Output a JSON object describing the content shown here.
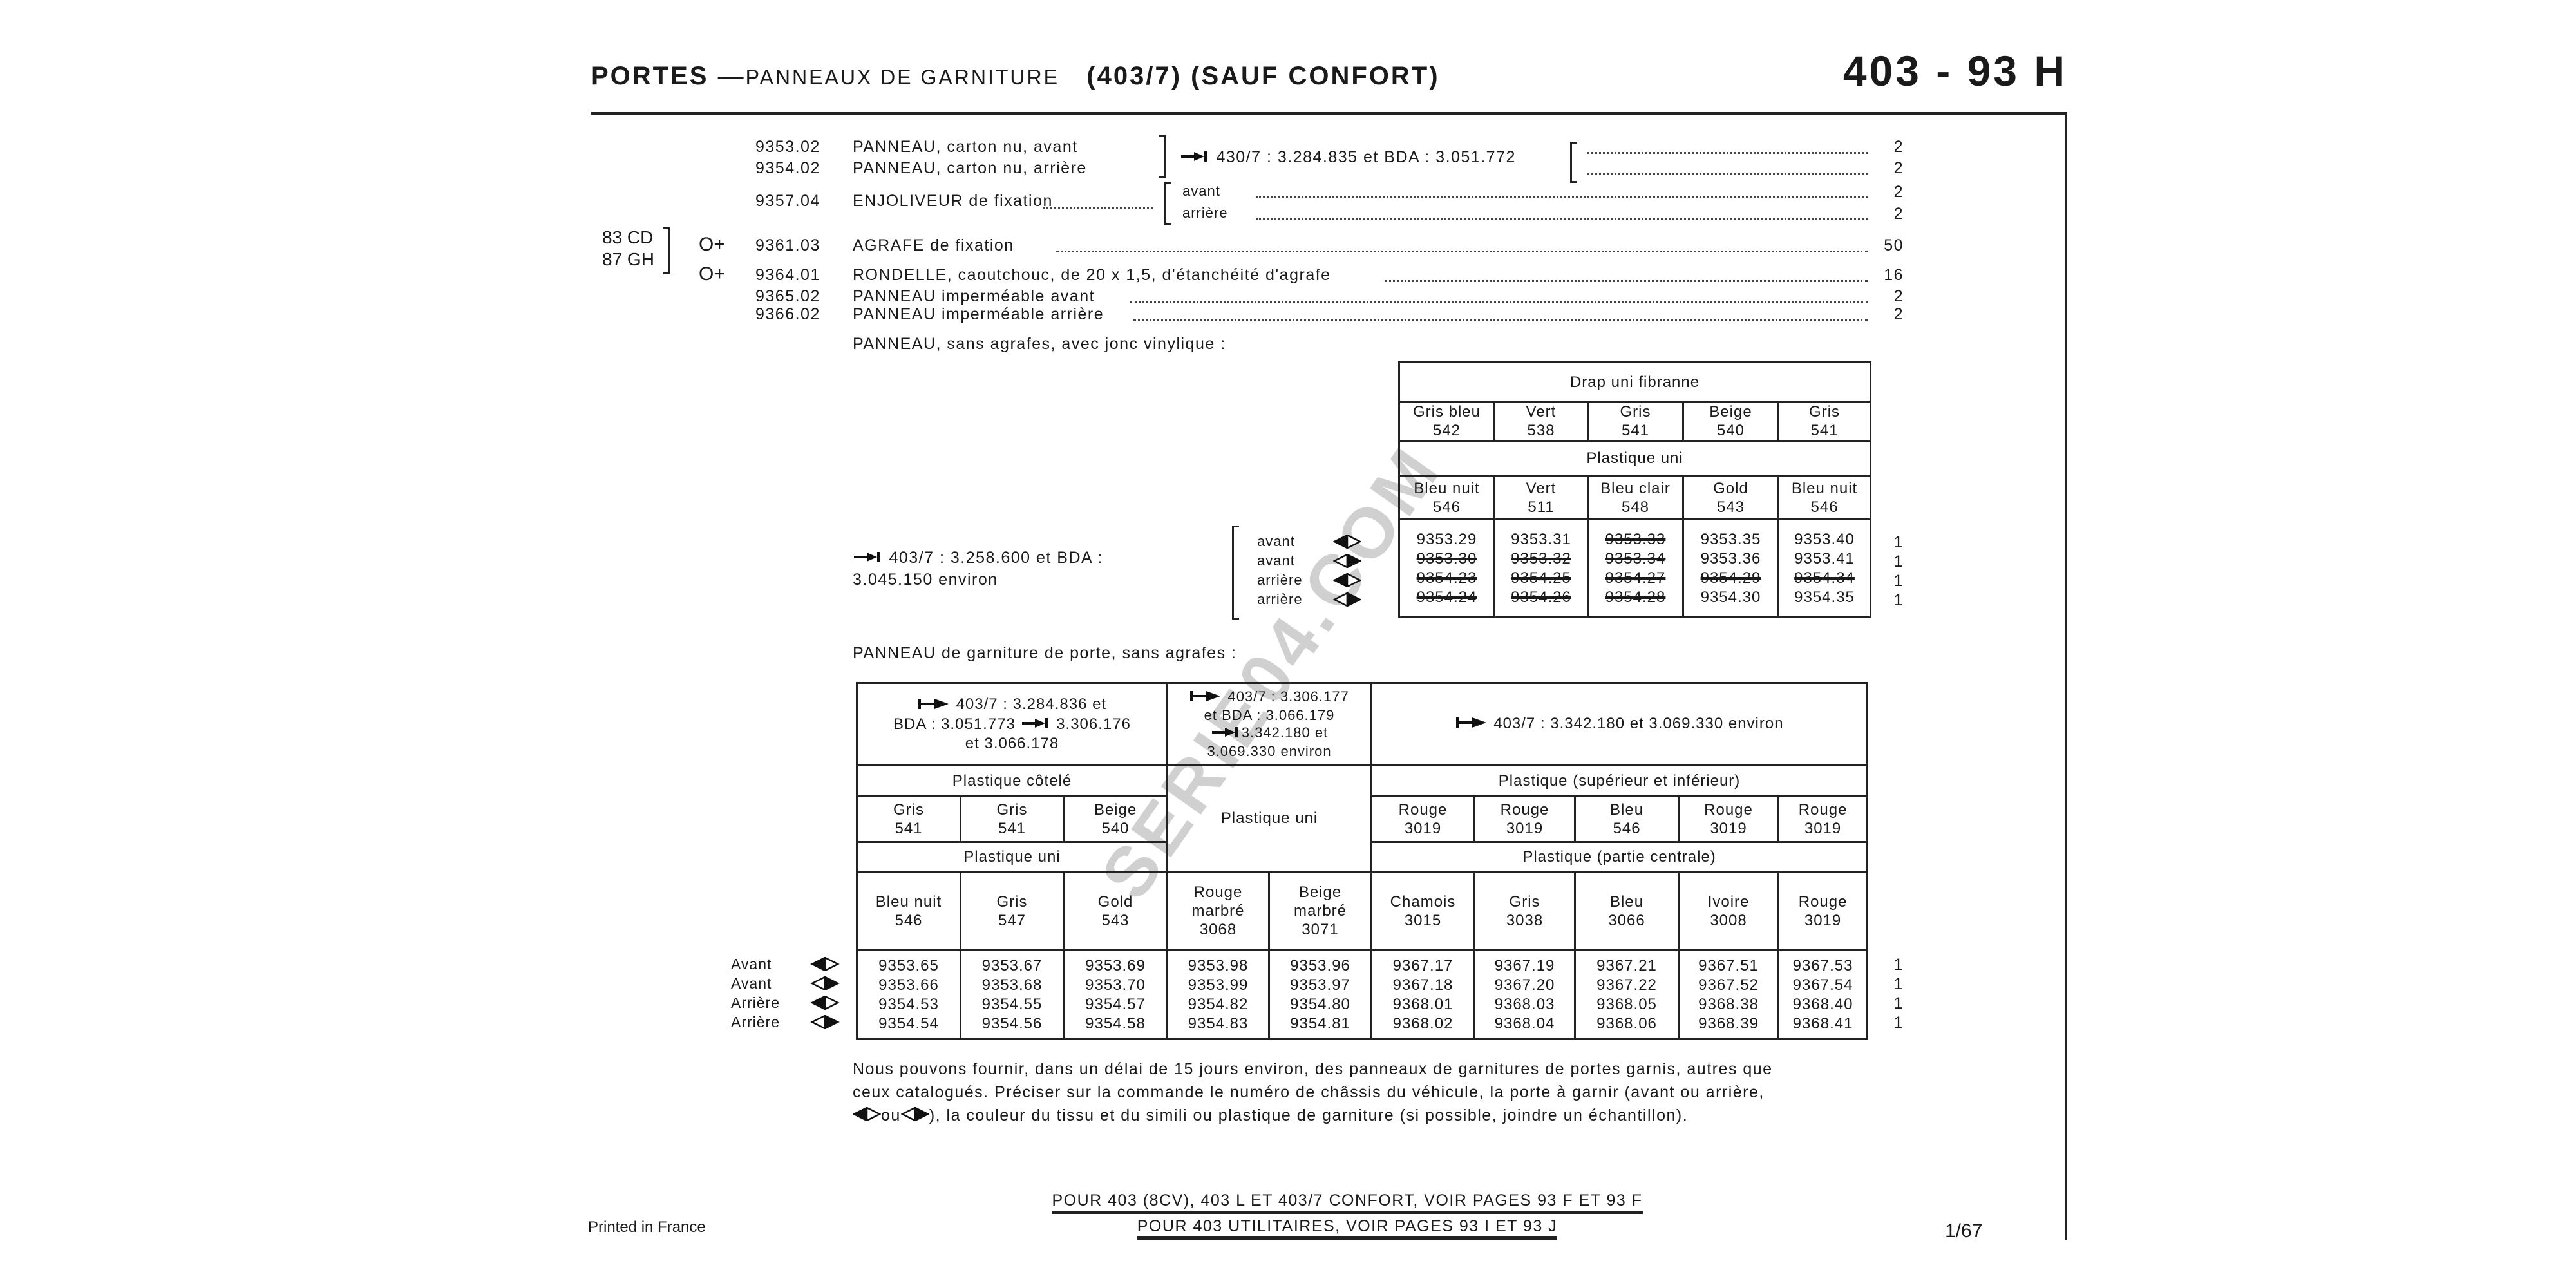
{
  "header": {
    "title_bold": "PORTES",
    "dash": "—",
    "title_rest": "PANNEAUX DE GARNITURE",
    "model": "(403/7) (SAUF CONFORT)",
    "page_code": "403 - 93 H"
  },
  "parts": [
    {
      "ref": "9353.02",
      "desc": "PANNEAU, carton nu, avant",
      "qty": "2"
    },
    {
      "ref": "9354.02",
      "desc": "PANNEAU, carton nu, arrière",
      "qty": "2"
    },
    {
      "ref": "9357.04",
      "desc": "ENJOLIVEUR de fixation",
      "sub": [
        {
          "label": "avant",
          "qty": "2"
        },
        {
          "label": "arrière",
          "qty": "2"
        }
      ]
    },
    {
      "ref": "9361.03",
      "desc": "AGRAFE de fixation",
      "qty": "50",
      "marker": "O+"
    },
    {
      "ref": "9364.01",
      "desc": "RONDELLE, caoutchouc, de 20 x 1,5, d'étanchéité d'agrafe",
      "qty": "16",
      "marker": "O+"
    },
    {
      "ref": "9365.02",
      "desc": "PANNEAU imperméable avant",
      "qty": "2"
    },
    {
      "ref": "9366.02",
      "desc": "PANNEAU imperméable arrière",
      "qty": "2"
    }
  ],
  "carton_note": "430/7 : 3.284.835 et BDA : 3.051.772",
  "side_codes": [
    "83 CD",
    "87 GH"
  ],
  "section1_heading": "PANNEAU, sans agrafes, avec jonc vinylique :",
  "table1": {
    "note_line1": "403/7 : 3.258.600 et BDA :",
    "note_line2": "3.045.150 environ",
    "group1": "Drap uni fibranne",
    "colors1": [
      {
        "name": "Gris bleu",
        "code": "542"
      },
      {
        "name": "Vert",
        "code": "538"
      },
      {
        "name": "Gris",
        "code": "541"
      },
      {
        "name": "Beige",
        "code": "540"
      },
      {
        "name": "Gris",
        "code": "541"
      }
    ],
    "group2": "Plastique uni",
    "colors2": [
      {
        "name": "Bleu nuit",
        "code": "546"
      },
      {
        "name": "Vert",
        "code": "511"
      },
      {
        "name": "Bleu clair",
        "code": "548"
      },
      {
        "name": "Gold",
        "code": "543"
      },
      {
        "name": "Bleu nuit",
        "code": "546"
      }
    ],
    "rows": [
      {
        "label": "avant",
        "icon": "diamond-left-filled-icon",
        "qty": "1",
        "values": [
          {
            "ref": "9353.29",
            "struck": false
          },
          {
            "ref": "9353.31",
            "struck": false
          },
          {
            "ref": "9353.33",
            "struck": true
          },
          {
            "ref": "9353.35",
            "struck": false
          },
          {
            "ref": "9353.40",
            "struck": false
          }
        ]
      },
      {
        "label": "avant",
        "icon": "diamond-right-filled-icon",
        "qty": "1",
        "values": [
          {
            "ref": "9353.30",
            "struck": true
          },
          {
            "ref": "9353.32",
            "struck": true
          },
          {
            "ref": "9353.34",
            "struck": true
          },
          {
            "ref": "9353.36",
            "struck": false
          },
          {
            "ref": "9353.41",
            "struck": false
          }
        ]
      },
      {
        "label": "arrière",
        "icon": "diamond-left-filled-icon",
        "qty": "1",
        "values": [
          {
            "ref": "9354.23",
            "struck": true
          },
          {
            "ref": "9354.25",
            "struck": true
          },
          {
            "ref": "9354.27",
            "struck": true
          },
          {
            "ref": "9354.29",
            "struck": true
          },
          {
            "ref": "9354.34",
            "struck": true
          }
        ]
      },
      {
        "label": "arrière",
        "icon": "diamond-right-filled-icon",
        "qty": "1",
        "values": [
          {
            "ref": "9354.24",
            "struck": true
          },
          {
            "ref": "9354.26",
            "struck": true
          },
          {
            "ref": "9354.28",
            "struck": true
          },
          {
            "ref": "9354.30",
            "struck": false
          },
          {
            "ref": "9354.35",
            "struck": false
          }
        ]
      }
    ]
  },
  "section2_heading": "PANNEAU de garniture de porte, sans agrafes :",
  "table2": {
    "h1": {
      "line1": "403/7 : 3.284.836 et",
      "line2a": "BDA : 3.051.773",
      "line2b": "3.306.176",
      "line3": "et 3.066.178"
    },
    "h2": {
      "line1": "403/7 : 3.306.177",
      "line2": "et BDA : 3.066.179",
      "line3": "3.342.180 et",
      "line4": "3.069.330 environ"
    },
    "h3": "403/7 : 3.342.180 et 3.069.330 environ",
    "group_cotele": "Plastique côtelé",
    "group_uni_middle": "Plastique uni",
    "group_sup_inf": "Plastique (supérieur et inférieur)",
    "group_uni_left": "Plastique uni",
    "group_centrale": "Plastique (partie centrale)",
    "colors_cotele": [
      {
        "name": "Gris",
        "code": "541"
      },
      {
        "name": "Gris",
        "code": "541"
      },
      {
        "name": "Beige",
        "code": "540"
      }
    ],
    "colors_sup_inf": [
      {
        "name": "Rouge",
        "code": "3019"
      },
      {
        "name": "Rouge",
        "code": "3019"
      },
      {
        "name": "Bleu",
        "code": "546"
      },
      {
        "name": "Rouge",
        "code": "3019"
      },
      {
        "name": "Rouge",
        "code": "3019"
      }
    ],
    "colors_main": [
      {
        "name": "Bleu nuit",
        "code": "546"
      },
      {
        "name": "Gris",
        "code": "547"
      },
      {
        "name": "Gold",
        "code": "543"
      },
      {
        "name": "Rouge marbré",
        "code": "3068"
      },
      {
        "name": "Beige marbré",
        "code": "3071"
      },
      {
        "name": "Chamois",
        "code": "3015"
      },
      {
        "name": "Gris",
        "code": "3038"
      },
      {
        "name": "Bleu",
        "code": "3066"
      },
      {
        "name": "Ivoire",
        "code": "3008"
      },
      {
        "name": "Rouge",
        "code": "3019"
      }
    ],
    "rows": [
      {
        "label": "Avant",
        "icon": "diamond-left-filled-icon",
        "qty": "1",
        "values": [
          "9353.65",
          "9353.67",
          "9353.69",
          "9353.98",
          "9353.96",
          "9367.17",
          "9367.19",
          "9367.21",
          "9367.51",
          "9367.53"
        ]
      },
      {
        "label": "Avant",
        "icon": "diamond-right-filled-icon",
        "qty": "1",
        "values": [
          "9353.66",
          "9353.68",
          "9353.70",
          "9353.99",
          "9353.97",
          "9367.18",
          "9367.20",
          "9367.22",
          "9367.52",
          "9367.54"
        ]
      },
      {
        "label": "Arrière",
        "icon": "diamond-left-filled-icon",
        "qty": "1",
        "values": [
          "9354.53",
          "9354.55",
          "9354.57",
          "9354.82",
          "9354.80",
          "9368.01",
          "9368.03",
          "9368.05",
          "9368.38",
          "9368.40"
        ]
      },
      {
        "label": "Arrière",
        "icon": "diamond-right-filled-icon",
        "qty": "1",
        "values": [
          "9354.54",
          "9354.56",
          "9354.58",
          "9354.83",
          "9354.81",
          "9368.02",
          "9368.04",
          "9368.06",
          "9368.39",
          "9368.41"
        ]
      }
    ]
  },
  "note": {
    "line1": "Nous pouvons fournir, dans un délai de 15 jours environ, des panneaux de garnitures de portes garnis, autres que",
    "line2": "ceux catalogués. Préciser sur la commande le numéro de châssis du véhicule, la porte à garnir (avant ou arrière,",
    "line3_or": "ou",
    "line3_rest": "), la couleur du tissu et du simili ou plastique de garniture (si possible, joindre un échantillon)."
  },
  "footer": {
    "ref_line1": "POUR 403 (8CV), 403 L ET 403/7 CONFORT, VOIR PAGES 93 F  ET  93 F",
    "ref_line2": "POUR 403 UTILITAIRES, VOIR PAGES 93 I  ET  93 J",
    "printed": "Printed in France",
    "page": "1/67"
  },
  "watermark": "SERIE04.COM"
}
